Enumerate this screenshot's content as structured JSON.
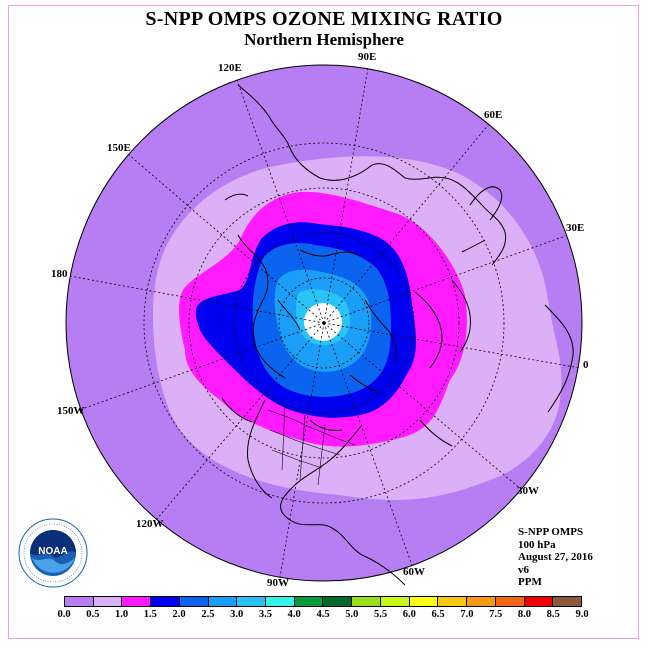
{
  "title": "S-NPP OMPS OZONE MIXING RATIO",
  "subtitle": "Northern Hemisphere",
  "longitude_labels": [
    "90E",
    "60E",
    "30E",
    "0",
    "30W",
    "60W",
    "90W",
    "120W",
    "150W",
    "180",
    "150E",
    "120E"
  ],
  "info": {
    "instrument": "S-NPP OMPS",
    "level": "100 hPa",
    "date": "August 27, 2016",
    "version": "v6",
    "units": "PPM"
  },
  "colorbar": {
    "ticks": [
      "0.0",
      "0.5",
      "1.0",
      "1.5",
      "2.0",
      "2.5",
      "3.0",
      "3.5",
      "4.0",
      "4.5",
      "5.0",
      "5.5",
      "6.0",
      "6.5",
      "7.0",
      "7.5",
      "8.0",
      "8.5",
      "9.0"
    ],
    "colors": [
      "#b77df2",
      "#dcb0f7",
      "#ff1aff",
      "#0000f0",
      "#0a64f0",
      "#1a9ef8",
      "#29c3f5",
      "#36f2e8",
      "#0a9a3c",
      "#006a2a",
      "#9adf1a",
      "#c8f51a",
      "#ffff14",
      "#f5c814",
      "#f59a14",
      "#f56414",
      "#f00000",
      "#8b5a3c"
    ]
  },
  "logo": {
    "text": "NOAA",
    "ring_text_top": "NATIONAL OCEANIC AND ATMOSPHERIC ADMINISTRATION",
    "ring_text_bottom": "U.S. DEPARTMENT OF COMMERCE"
  }
}
